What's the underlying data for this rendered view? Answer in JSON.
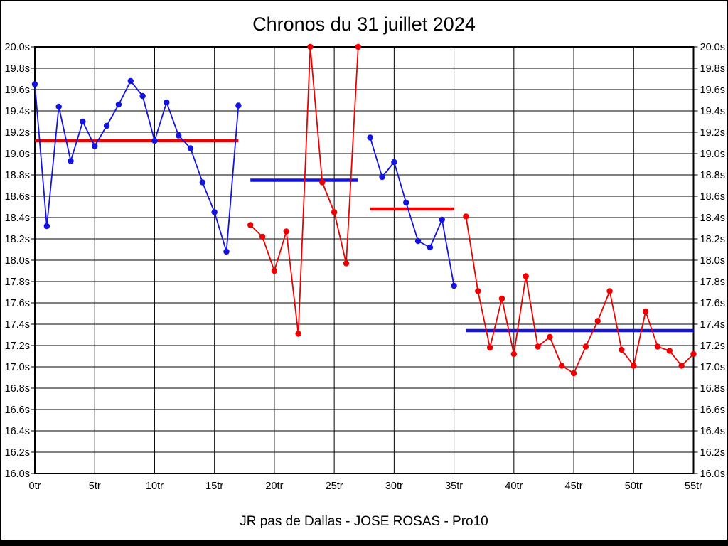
{
  "chart_data": {
    "type": "line",
    "title": "Chronos du 31 juillet 2024",
    "footer": "JR pas de Dallas - JOSE ROSAS - Pro10",
    "x_unit_suffix": "tr",
    "y_unit_suffix": "s",
    "xlim": [
      0,
      55
    ],
    "ylim": [
      16.0,
      20.0
    ],
    "y_tick_step": 0.2,
    "x_tick_step": 5,
    "grid": true,
    "x_tick_labels": [
      "0tr",
      "5tr",
      "10tr",
      "15tr",
      "20tr",
      "25tr",
      "30tr",
      "35tr",
      "40tr",
      "45tr",
      "50tr",
      "55tr"
    ],
    "y_tick_labels": [
      "20.0s",
      "19.8s",
      "19.6s",
      "19.4s",
      "19.2s",
      "19.0s",
      "18.8s",
      "18.6s",
      "18.4s",
      "18.2s",
      "18.0s",
      "17.8s",
      "17.6s",
      "17.4s",
      "17.2s",
      "17.0s",
      "16.8s",
      "16.6s",
      "16.4s",
      "16.2s",
      "16.0s"
    ],
    "y_axis_labels_on_both_sides": true,
    "series": [
      {
        "name": "segment-1-blue",
        "color": "#1414e0",
        "start_x": 0,
        "values": [
          19.65,
          18.32,
          19.44,
          18.93,
          19.3,
          19.07,
          19.26,
          19.46,
          19.68,
          19.54,
          19.12,
          19.48,
          19.17,
          19.05,
          18.73,
          18.45,
          18.08,
          19.45
        ]
      },
      {
        "name": "segment-2-red",
        "color": "#ee0000",
        "start_x": 18,
        "values": [
          18.33,
          18.22,
          17.9,
          18.27,
          17.31,
          20.0,
          18.73,
          18.45,
          17.97,
          20.0
        ],
        "clipped_at_axis_top_indices": [
          5,
          9
        ]
      },
      {
        "name": "segment-3-blue",
        "color": "#1414e0",
        "start_x": 28,
        "values": [
          19.15,
          18.78,
          18.92,
          18.54,
          18.18,
          18.12,
          18.38,
          17.76
        ]
      },
      {
        "name": "segment-4-red",
        "color": "#ee0000",
        "start_x": 36,
        "values": [
          18.41,
          17.71,
          17.18,
          17.64,
          17.12,
          17.85,
          17.19,
          17.28,
          17.01,
          16.94,
          17.19,
          17.43,
          17.71,
          17.16,
          17.01,
          17.52,
          17.19,
          17.15,
          17.01,
          17.12
        ]
      }
    ],
    "average_lines": [
      {
        "name": "average-segment-1",
        "color": "#ee0000",
        "from_x": 0,
        "to_x": 17,
        "value": 19.12
      },
      {
        "name": "average-segment-2",
        "color": "#1414e0",
        "from_x": 18,
        "to_x": 27,
        "value": 18.75
      },
      {
        "name": "average-segment-3",
        "color": "#ee0000",
        "from_x": 28,
        "to_x": 35,
        "value": 18.48
      },
      {
        "name": "average-segment-4",
        "color": "#1414e0",
        "from_x": 36,
        "to_x": 55,
        "value": 17.34
      }
    ]
  }
}
